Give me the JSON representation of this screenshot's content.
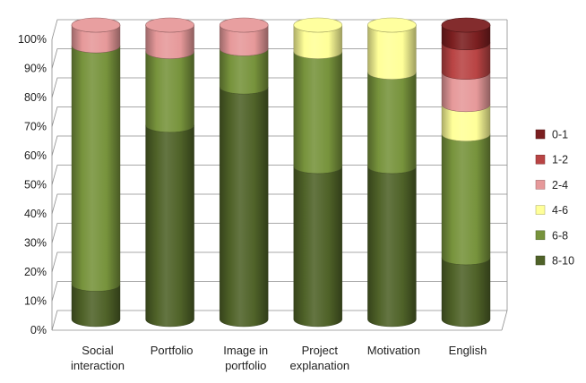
{
  "chart_data": {
    "type": "bar",
    "stacked": true,
    "percent": true,
    "style": "3d-cylinder",
    "categories": [
      [
        "Social",
        "interaction"
      ],
      [
        "Portfolio"
      ],
      [
        "Image in",
        "portfolio"
      ],
      [
        "Project",
        "explanation"
      ],
      [
        "Motivation"
      ],
      [
        "English"
      ]
    ],
    "series": [
      {
        "name": "8-10",
        "color": "#4f6228",
        "values": [
          12,
          66,
          79,
          52,
          52,
          21
        ]
      },
      {
        "name": "6-8",
        "color": "#77933c",
        "values": [
          81,
          25,
          13,
          39,
          32,
          42
        ]
      },
      {
        "name": "4-6",
        "color": "#ffff99",
        "values": [
          0,
          0,
          0,
          9,
          16,
          10
        ]
      },
      {
        "name": "2-4",
        "color": "#e6999a",
        "values": [
          7,
          9,
          8,
          0,
          0,
          11
        ]
      },
      {
        "name": "1-2",
        "color": "#b94444",
        "values": [
          0,
          0,
          0,
          0,
          0,
          10
        ]
      },
      {
        "name": "0-1",
        "color": "#7b1f20",
        "values": [
          0,
          0,
          0,
          0,
          0,
          6
        ]
      }
    ],
    "yticks": [
      "0%",
      "10%",
      "20%",
      "30%",
      "40%",
      "50%",
      "60%",
      "70%",
      "80%",
      "90%",
      "100%"
    ],
    "ylim": [
      0,
      100
    ],
    "title": "",
    "xlabel": "",
    "ylabel": "",
    "grid": true,
    "legend_position": "right",
    "legend_order": [
      "0-1",
      "1-2",
      "2-4",
      "4-6",
      "6-8",
      "8-10"
    ]
  }
}
